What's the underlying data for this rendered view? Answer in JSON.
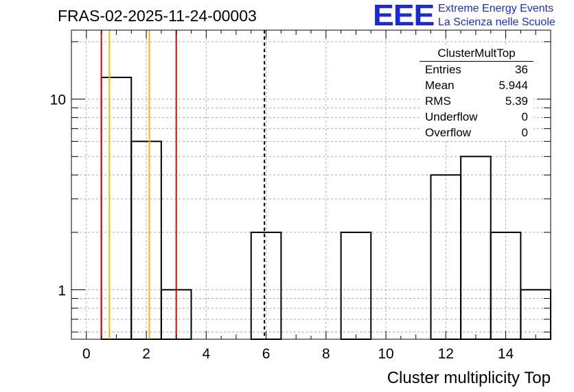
{
  "header": {
    "title": "FRAS-02-2025-11-24-00003",
    "logo_letters": "EEE",
    "logo_line1": "Extreme Energy Events",
    "logo_line2": "La Scienza nelle Scuole",
    "logo_color": "#1a2bd6"
  },
  "stats": {
    "title": "ClusterMultTop",
    "rows": [
      {
        "label": "Entries",
        "value": "36"
      },
      {
        "label": "Mean",
        "value": "5.944"
      },
      {
        "label": "RMS",
        "value": "5.39"
      },
      {
        "label": "Underflow",
        "value": "0"
      },
      {
        "label": "Overflow",
        "value": "0"
      }
    ]
  },
  "chart_data": {
    "type": "histogram",
    "title": "FRAS-02-2025-11-24-00003",
    "xlabel": "Cluster multiplicity Top",
    "ylabel": "",
    "xlim": [
      -0.5,
      15.5
    ],
    "ylim": [
      0.55,
      23
    ],
    "yscale": "log",
    "grid": true,
    "bins": [
      {
        "low": -0.5,
        "high": 0.5,
        "count": 0
      },
      {
        "low": 0.5,
        "high": 1.5,
        "count": 13
      },
      {
        "low": 1.5,
        "high": 2.5,
        "count": 6
      },
      {
        "low": 2.5,
        "high": 3.5,
        "count": 1
      },
      {
        "low": 3.5,
        "high": 4.5,
        "count": 0
      },
      {
        "low": 4.5,
        "high": 5.5,
        "count": 0
      },
      {
        "low": 5.5,
        "high": 6.5,
        "count": 2
      },
      {
        "low": 6.5,
        "high": 7.5,
        "count": 0
      },
      {
        "low": 7.5,
        "high": 8.5,
        "count": 0
      },
      {
        "low": 8.5,
        "high": 9.5,
        "count": 2
      },
      {
        "low": 9.5,
        "high": 10.5,
        "count": 0
      },
      {
        "low": 10.5,
        "high": 11.5,
        "count": 0
      },
      {
        "low": 11.5,
        "high": 12.5,
        "count": 4
      },
      {
        "low": 12.5,
        "high": 13.5,
        "count": 5
      },
      {
        "low": 13.5,
        "high": 14.5,
        "count": 2
      },
      {
        "low": 14.5,
        "high": 15.5,
        "count": 1
      }
    ],
    "x_ticks": [
      0,
      2,
      4,
      6,
      8,
      10,
      12,
      14
    ],
    "x_tick_labels": [
      "0",
      "2",
      "4",
      "6",
      "8",
      "10",
      "12",
      "14"
    ],
    "y_ticks": [
      1,
      10
    ],
    "y_tick_labels": [
      "1",
      "10"
    ],
    "vertical_lines": [
      {
        "x": 0.5,
        "color": "#e00000",
        "style": "solid"
      },
      {
        "x": 0.77,
        "color": "#f2b800",
        "style": "solid"
      },
      {
        "x": 2.1,
        "color": "#f2b800",
        "style": "solid"
      },
      {
        "x": 3.0,
        "color": "#e00000",
        "style": "solid"
      },
      {
        "x": 5.944,
        "color": "#000000",
        "style": "dashed"
      }
    ]
  }
}
